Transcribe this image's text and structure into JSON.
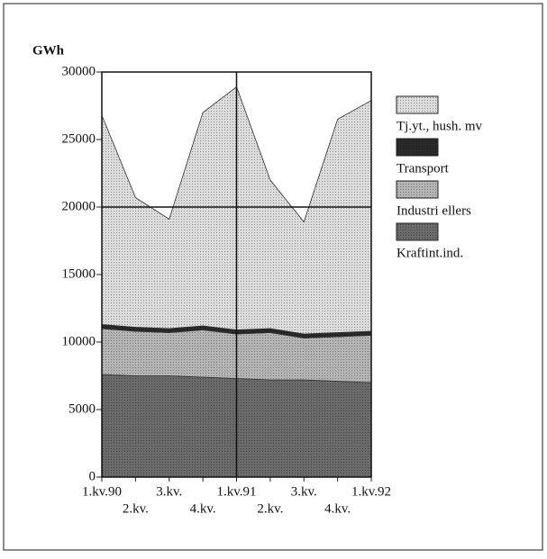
{
  "chart_data": {
    "type": "stacked-area",
    "y_label": "GWh",
    "categories": [
      "1.kv.90",
      "2.kv.",
      "3.kv.",
      "4.kv.",
      "1.kv.91",
      "2.kv.",
      "3.kv.",
      "4.kv.",
      "1.kv.92"
    ],
    "series": [
      {
        "name": "Kraftint.ind.",
        "color": "#6a6a6a",
        "values": [
          7600,
          7500,
          7500,
          7400,
          7300,
          7200,
          7200,
          7100,
          7000
        ]
      },
      {
        "name": "Industri ellers",
        "color": "#b4b4b4",
        "values": [
          3400,
          3300,
          3200,
          3500,
          3300,
          3500,
          3100,
          3300,
          3500
        ]
      },
      {
        "name": "Transport",
        "color": "#2a2a2a",
        "values": [
          300,
          300,
          300,
          300,
          300,
          300,
          300,
          300,
          300
        ]
      },
      {
        "name": "Tj.yt., hush. mv",
        "color": "#dcdcdc",
        "values": [
          15500,
          9600,
          8100,
          15800,
          18000,
          11000,
          8300,
          15800,
          17100
        ]
      }
    ],
    "legend_order": [
      3,
      2,
      1,
      0
    ],
    "ylim": [
      0,
      30000
    ],
    "yticks": [
      0,
      5000,
      10000,
      15000,
      20000,
      25000,
      30000
    ]
  }
}
